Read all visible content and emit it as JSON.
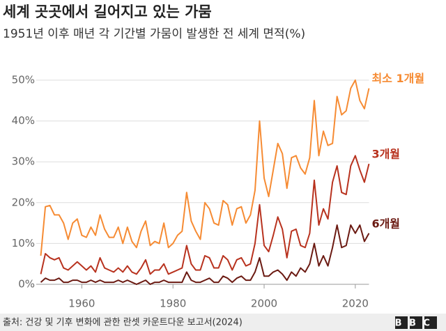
{
  "chart_data": {
    "type": "line",
    "title": "세계 곳곳에서 길어지고 있는 가뭄",
    "subtitle": "1951년 이후 매년 각 기간별 가뭄이 발생한 전 세계 면적(%)",
    "source": "출처: 건강 및 기후 변화에 관한 란셋 카운트다운 보고서(2024)",
    "logo": "BBC",
    "x": [
      1951,
      1952,
      1953,
      1954,
      1955,
      1956,
      1957,
      1958,
      1959,
      1960,
      1961,
      1962,
      1963,
      1964,
      1965,
      1966,
      1967,
      1968,
      1969,
      1970,
      1971,
      1972,
      1973,
      1974,
      1975,
      1976,
      1977,
      1978,
      1979,
      1980,
      1981,
      1982,
      1983,
      1984,
      1985,
      1986,
      1987,
      1988,
      1989,
      1990,
      1991,
      1992,
      1993,
      1994,
      1995,
      1996,
      1997,
      1998,
      1999,
      2000,
      2001,
      2002,
      2003,
      2004,
      2005,
      2006,
      2007,
      2008,
      2009,
      2010,
      2011,
      2012,
      2013,
      2014,
      2015,
      2016,
      2017,
      2018,
      2019,
      2020,
      2021,
      2022,
      2023
    ],
    "series": [
      {
        "name": "최소 1개월",
        "color": "#f68b33",
        "values": [
          7,
          19,
          19.3,
          17,
          17,
          15,
          11,
          15,
          16,
          12,
          11.5,
          14,
          12,
          17,
          13.5,
          11.5,
          11.5,
          14,
          10,
          14,
          10.5,
          9,
          13,
          15.5,
          9.5,
          10.5,
          10,
          15,
          9,
          10,
          12,
          13,
          22.5,
          15.5,
          13,
          11,
          20,
          18.5,
          15,
          14.5,
          20.5,
          19.5,
          14.5,
          18.5,
          19,
          15,
          17,
          23,
          40,
          26,
          21.5,
          28,
          34.5,
          32,
          23.5,
          31,
          31.5,
          28.5,
          27,
          31,
          45,
          31.5,
          37.5,
          34,
          34.5,
          46,
          41.5,
          42.5,
          48,
          50,
          45,
          43,
          48
        ]
      },
      {
        "name": "3개월",
        "color": "#b8321e",
        "values": [
          2.5,
          7.5,
          6.5,
          6,
          6.5,
          4,
          3.5,
          4.5,
          5.5,
          4.5,
          3.5,
          4.5,
          3,
          6.5,
          4,
          3.5,
          3,
          4,
          3,
          4.5,
          3,
          2.5,
          4,
          6,
          2.5,
          3.5,
          3.5,
          5,
          2.5,
          3,
          3.5,
          4,
          9.5,
          5,
          3.5,
          3.5,
          7,
          6.5,
          4,
          4,
          7,
          6,
          3.5,
          6,
          6.5,
          4.5,
          5,
          10,
          19.5,
          9.5,
          8,
          12,
          16.5,
          13.5,
          6.5,
          13,
          13.5,
          9.5,
          9,
          12.5,
          25.5,
          14.5,
          18.5,
          16,
          25,
          29,
          22.5,
          22,
          29,
          31.5,
          28,
          25,
          29.5
        ]
      },
      {
        "name": "6개월",
        "color": "#6b1a12",
        "values": [
          0.5,
          1.5,
          1,
          1,
          1.5,
          0.5,
          0.5,
          1,
          1,
          0.5,
          0.5,
          1,
          0.5,
          1,
          0.5,
          0.5,
          0.5,
          1,
          0.5,
          1,
          0.5,
          0,
          0.5,
          1,
          0,
          0.5,
          0.5,
          1,
          0.5,
          0.5,
          0.5,
          0.5,
          3,
          1,
          0.5,
          0.5,
          1,
          1.5,
          0.5,
          0.5,
          2,
          1.5,
          0.5,
          1.5,
          2,
          1,
          1,
          3,
          6.5,
          2,
          2,
          3,
          3.5,
          2.5,
          1,
          3,
          2,
          4,
          3,
          5,
          10,
          4.5,
          7,
          4.5,
          9,
          14.5,
          9,
          9.5,
          14.5,
          12.5,
          14.5,
          10.5,
          12.5
        ]
      }
    ],
    "xlim": [
      1950,
      2024
    ],
    "xticks": [
      1960,
      1980,
      2000,
      2020
    ],
    "ylim": [
      0,
      50
    ],
    "yticks": [
      {
        "value": 0,
        "label": "0%"
      },
      {
        "value": 10,
        "label": "10%"
      },
      {
        "value": 20,
        "label": "20%"
      },
      {
        "value": 30,
        "label": "30%"
      },
      {
        "value": 40,
        "label": "40%"
      },
      {
        "value": 50,
        "label": "50%"
      }
    ],
    "grid": true
  }
}
